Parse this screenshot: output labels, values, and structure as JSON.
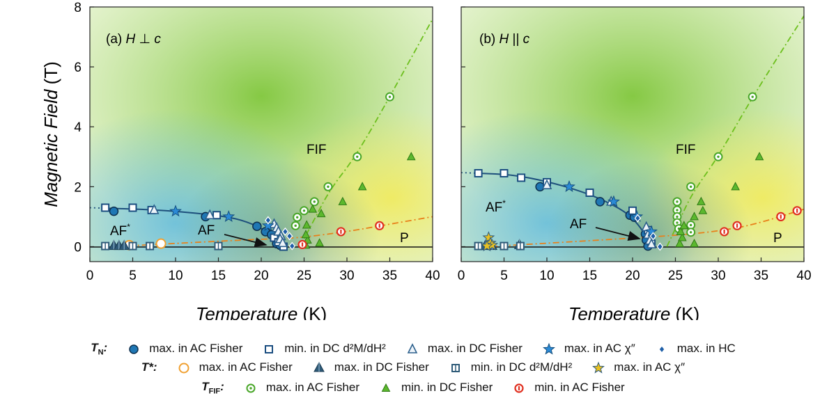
{
  "chart_data": [
    {
      "type": "scatter",
      "panel_label": "(a) H ⊥ c",
      "xlabel": "Temperature (K)",
      "ylabel": "Magnetic Field (T)",
      "xlim": [
        0,
        40
      ],
      "ylim": [
        -0.5,
        8
      ],
      "xticks": [
        0,
        5,
        10,
        15,
        20,
        25,
        30,
        35,
        40
      ],
      "yticks": [
        0,
        2,
        4,
        6,
        8
      ],
      "region_labels": [
        "AF*",
        "AF",
        "FIF",
        "P"
      ],
      "series": [
        {
          "name": "TN max. in AC Fisher",
          "marker": "circle-filled",
          "color": "#1f77b4",
          "points": [
            [
              2.8,
              1.18
            ],
            [
              13.5,
              1.0
            ],
            [
              19.5,
              0.68
            ],
            [
              20.5,
              0.5
            ],
            [
              21.2,
              0.4
            ],
            [
              21.8,
              0.1
            ],
            [
              22.2,
              0.05
            ]
          ]
        },
        {
          "name": "TN min. in DC d2M/dH2",
          "marker": "square-open",
          "color": "#1a4d80",
          "points": [
            [
              1.8,
              1.3
            ],
            [
              5,
              1.3
            ],
            [
              7.2,
              1.22
            ],
            [
              14.8,
              1.05
            ],
            [
              21.5,
              0.3
            ],
            [
              22.0,
              0.15
            ],
            [
              22.6,
              0.0
            ]
          ]
        },
        {
          "name": "TN max. in DC Fisher",
          "marker": "triangle-open",
          "color": "#2b5f8c",
          "points": [
            [
              7.5,
              1.22
            ],
            [
              14,
              1.05
            ],
            [
              21.5,
              0.75
            ],
            [
              21.8,
              0.62
            ],
            [
              22.0,
              0.5
            ],
            [
              22.3,
              0.35
            ],
            [
              22.2,
              0.25
            ],
            [
              22.5,
              0.12
            ]
          ]
        },
        {
          "name": "TN max. in AC chi''",
          "marker": "star",
          "color": "#2b8ad6",
          "points": [
            [
              10,
              1.18
            ],
            [
              16.2,
              1.0
            ],
            [
              20.8,
              0.7
            ]
          ]
        },
        {
          "name": "TN max. in HC",
          "marker": "diamond",
          "color": "#1f5fa8",
          "points": [
            [
              20.8,
              0.88
            ],
            [
              22.8,
              0.5
            ],
            [
              23.3,
              0.35
            ],
            [
              23.6,
              0.02
            ]
          ]
        },
        {
          "name": "T* max. in AC Fisher",
          "marker": "circle-open",
          "color": "#f0a030",
          "points": [
            [
              4.6,
              0.05
            ],
            [
              8.3,
              0.1
            ]
          ]
        },
        {
          "name": "T* max. in DC Fisher",
          "marker": "triangle-filled",
          "color": "#2e5a78",
          "points": [
            [
              2.8,
              0.02
            ],
            [
              3.4,
              0.02
            ],
            [
              4.0,
              0.02
            ]
          ]
        },
        {
          "name": "T* min. in DC d2M/dH2",
          "marker": "square-split",
          "color": "#2e5a78",
          "points": [
            [
              1.8,
              0.02
            ],
            [
              5,
              0.02
            ],
            [
              7,
              0.02
            ],
            [
              15,
              0.02
            ]
          ]
        },
        {
          "name": "TFIF max. in AC Fisher",
          "marker": "circle-dot",
          "color": "#48a628",
          "points": [
            [
              24,
              0.7
            ],
            [
              24.2,
              0.98
            ],
            [
              25,
              1.2
            ],
            [
              26.2,
              1.5
            ],
            [
              27.8,
              2.0
            ],
            [
              31.2,
              3.0
            ],
            [
              35,
              5.0
            ]
          ]
        },
        {
          "name": "TFIF min. in DC Fisher",
          "marker": "triangle-green",
          "color": "#5cb82e",
          "points": [
            [
              25.2,
              0.05
            ],
            [
              25.4,
              0.22
            ],
            [
              25.2,
              0.4
            ],
            [
              25.3,
              0.72
            ],
            [
              26.8,
              0.12
            ],
            [
              27.0,
              1.1
            ],
            [
              26.0,
              1.25
            ],
            [
              29.5,
              1.5
            ],
            [
              31.8,
              2.0
            ],
            [
              37.5,
              3.0
            ]
          ]
        },
        {
          "name": "TFIF min. in AC Fisher",
          "marker": "circle-red",
          "color": "#e03020",
          "points": [
            [
              24.8,
              0.07
            ],
            [
              29.3,
              0.5
            ],
            [
              33.8,
              0.7
            ]
          ]
        }
      ],
      "curves": [
        {
          "name": "TN",
          "style": "solid",
          "color": "#1d4f7c",
          "points": [
            [
              2,
              1.28
            ],
            [
              6,
              1.25
            ],
            [
              10,
              1.18
            ],
            [
              14,
              1.07
            ],
            [
              17,
              0.95
            ],
            [
              19.5,
              0.7
            ],
            [
              21,
              0.42
            ],
            [
              21.8,
              0.1
            ],
            [
              22.4,
              0.0
            ]
          ]
        },
        {
          "name": "TN extrapolation",
          "style": "dotted",
          "color": "#1d4f7c",
          "points": [
            [
              0,
              1.3
            ],
            [
              2,
              1.28
            ]
          ]
        },
        {
          "name": "TFIF",
          "style": "dashdot",
          "color": "#6cbf1c",
          "points": [
            [
              24.5,
              0.0
            ],
            [
              26,
              0.8
            ],
            [
              28,
              1.9
            ],
            [
              31,
              3.0
            ],
            [
              35,
              5.0
            ],
            [
              40,
              7.6
            ]
          ]
        },
        {
          "name": "T* line",
          "style": "dashdot",
          "color": "#e8801a",
          "points": [
            [
              3,
              0.0
            ],
            [
              8,
              0.08
            ],
            [
              15,
              0.18
            ],
            [
              20,
              0.25
            ],
            [
              24,
              0.28
            ],
            [
              30,
              0.5
            ],
            [
              34,
              0.7
            ],
            [
              40,
              1.0
            ]
          ]
        }
      ]
    },
    {
      "type": "scatter",
      "panel_label": "(b) H || c",
      "xlabel": "Temperature (K)",
      "ylabel": "",
      "xlim": [
        0,
        40
      ],
      "ylim": [
        -0.5,
        8
      ],
      "xticks": [
        0,
        5,
        10,
        15,
        20,
        25,
        30,
        35,
        40
      ],
      "yticks": [
        0,
        2,
        4,
        6,
        8
      ],
      "region_labels": [
        "AF*",
        "AF",
        "FIF",
        "P"
      ],
      "series": [
        {
          "name": "TN max. in AC Fisher",
          "marker": "circle-filled",
          "color": "#1f77b4",
          "points": [
            [
              9.2,
              2.0
            ],
            [
              16.2,
              1.5
            ],
            [
              19.7,
              1.05
            ],
            [
              20.2,
              0.98
            ],
            [
              21.5,
              0.42
            ],
            [
              21.6,
              0.22
            ],
            [
              21.8,
              0.02
            ]
          ]
        },
        {
          "name": "TN min. in DC d2M/dH2",
          "marker": "square-open",
          "color": "#1a4d80",
          "points": [
            [
              2,
              2.45
            ],
            [
              5,
              2.45
            ],
            [
              7,
              2.3
            ],
            [
              10,
              2.15
            ],
            [
              15,
              1.8
            ],
            [
              20,
              1.2
            ],
            [
              21.8,
              0.55
            ],
            [
              22.2,
              0.1
            ]
          ]
        },
        {
          "name": "TN max. in DC Fisher",
          "marker": "triangle-open",
          "color": "#2b5f8c",
          "points": [
            [
              10,
              2.05
            ],
            [
              17.5,
              1.5
            ],
            [
              21.6,
              0.65
            ],
            [
              21.8,
              0.4
            ],
            [
              22.0,
              0.2
            ],
            [
              22.2,
              0.08
            ]
          ]
        },
        {
          "name": "TN max. in AC chi''",
          "marker": "star",
          "color": "#2b8ad6",
          "points": [
            [
              12.6,
              2.0
            ],
            [
              17.8,
              1.5
            ],
            [
              20.5,
              1.0
            ],
            [
              22.2,
              0.5
            ]
          ]
        },
        {
          "name": "TN max. in HC",
          "marker": "diamond",
          "color": "#1f5fa8",
          "points": [
            [
              20.6,
              0.95
            ],
            [
              22.4,
              0.35
            ],
            [
              23.2,
              0.0
            ]
          ]
        },
        {
          "name": "T* max. in AC Fisher",
          "marker": "circle-open",
          "color": "#f0a030",
          "points": []
        },
        {
          "name": "T* max. in DC Fisher",
          "marker": "triangle-filled",
          "color": "#2e5a78",
          "points": [
            [
              2.8,
              0.02
            ],
            [
              3.6,
              0.02
            ],
            [
              6.8,
              0.05
            ]
          ]
        },
        {
          "name": "T* min. in DC d2M/dH2",
          "marker": "square-split",
          "color": "#2e5a78",
          "points": [
            [
              2,
              0.02
            ],
            [
              5,
              0.02
            ],
            [
              6.9,
              0.02
            ]
          ]
        },
        {
          "name": "T* max. in AC chi''",
          "marker": "star-yellow",
          "color": "#e8c020",
          "points": [
            [
              3.2,
              0.3
            ],
            [
              3.4,
              0.12
            ],
            [
              3.6,
              0.05
            ],
            [
              3.0,
              0.02
            ]
          ]
        },
        {
          "name": "TFIF max. in AC Fisher",
          "marker": "circle-dot",
          "color": "#48a628",
          "points": [
            [
              25.2,
              1.5
            ],
            [
              25.2,
              1.22
            ],
            [
              25.2,
              1.0
            ],
            [
              25.2,
              0.8
            ],
            [
              25.4,
              0.6
            ],
            [
              26.8,
              0.72
            ],
            [
              26.8,
              0.48
            ],
            [
              26.8,
              2.0
            ],
            [
              30.0,
              3.0
            ],
            [
              34.0,
              5.0
            ]
          ]
        },
        {
          "name": "TFIF min. in DC Fisher",
          "marker": "triangle-green",
          "color": "#5cb82e",
          "points": [
            [
              25.5,
              0.1
            ],
            [
              25.8,
              0.3
            ],
            [
              25.6,
              0.5
            ],
            [
              26.0,
              0.7
            ],
            [
              27.2,
              0.1
            ],
            [
              27.2,
              1.0
            ],
            [
              28.2,
              1.2
            ],
            [
              28.0,
              1.5
            ],
            [
              32.0,
              2.0
            ],
            [
              34.8,
              3.0
            ]
          ]
        },
        {
          "name": "TFIF min. in AC Fisher",
          "marker": "circle-red",
          "color": "#e03020",
          "points": [
            [
              30.7,
              0.5
            ],
            [
              32.2,
              0.7
            ],
            [
              37.3,
              1.0
            ],
            [
              39.2,
              1.2
            ]
          ]
        }
      ],
      "curves": [
        {
          "name": "TN",
          "style": "solid",
          "color": "#1d4f7c",
          "points": [
            [
              2,
              2.45
            ],
            [
              6,
              2.4
            ],
            [
              10,
              2.18
            ],
            [
              14,
              1.85
            ],
            [
              17,
              1.5
            ],
            [
              19.5,
              1.1
            ],
            [
              21,
              0.62
            ],
            [
              21.7,
              0.25
            ],
            [
              22.0,
              0.0
            ]
          ]
        },
        {
          "name": "TN extrapolation",
          "style": "dotted",
          "color": "#1d4f7c",
          "points": [
            [
              0,
              2.47
            ],
            [
              2,
              2.45
            ]
          ]
        },
        {
          "name": "TFIF",
          "style": "dashdot",
          "color": "#6cbf1c",
          "points": [
            [
              24.0,
              0.0
            ],
            [
              25.5,
              0.9
            ],
            [
              27,
              1.8
            ],
            [
              30,
              3.0
            ],
            [
              34,
              5.0
            ],
            [
              40,
              7.7
            ]
          ]
        },
        {
          "name": "T* line",
          "style": "dashdot",
          "color": "#e8801a",
          "points": [
            [
              3,
              0.0
            ],
            [
              8,
              0.08
            ],
            [
              15,
              0.2
            ],
            [
              22,
              0.32
            ],
            [
              26,
              0.4
            ],
            [
              30,
              0.52
            ],
            [
              34,
              0.72
            ],
            [
              40,
              1.25
            ]
          ]
        }
      ]
    }
  ],
  "legend": {
    "rows": [
      {
        "head": "T",
        "head_sub": "N",
        "head_suffix": ":",
        "items": [
          {
            "marker": "circle-filled",
            "label": "max. in AC Fisher"
          },
          {
            "marker": "square-open",
            "label": "min. in DC d²M/dH²"
          },
          {
            "marker": "triangle-open",
            "label": "max. in DC Fisher"
          },
          {
            "marker": "star",
            "label": "max. in AC χ″"
          },
          {
            "marker": "diamond",
            "label": "max. in HC"
          }
        ]
      },
      {
        "head": "T*",
        "head_sub": "",
        "head_suffix": ":",
        "items": [
          {
            "marker": "circle-open",
            "label": "max. in AC Fisher"
          },
          {
            "marker": "triangle-filled",
            "label": "max. in DC Fisher"
          },
          {
            "marker": "square-split",
            "label": "min. in DC d²M/dH²"
          },
          {
            "marker": "star-yellow",
            "label": "max. in AC χ″"
          }
        ]
      },
      {
        "head": "T",
        "head_sub": "FIF",
        "head_suffix": ":",
        "items": [
          {
            "marker": "circle-dot",
            "label": "max. in AC Fisher"
          },
          {
            "marker": "triangle-green",
            "label": "min. in DC Fisher"
          },
          {
            "marker": "circle-red",
            "label": "min. in AC Fisher"
          }
        ]
      }
    ]
  }
}
